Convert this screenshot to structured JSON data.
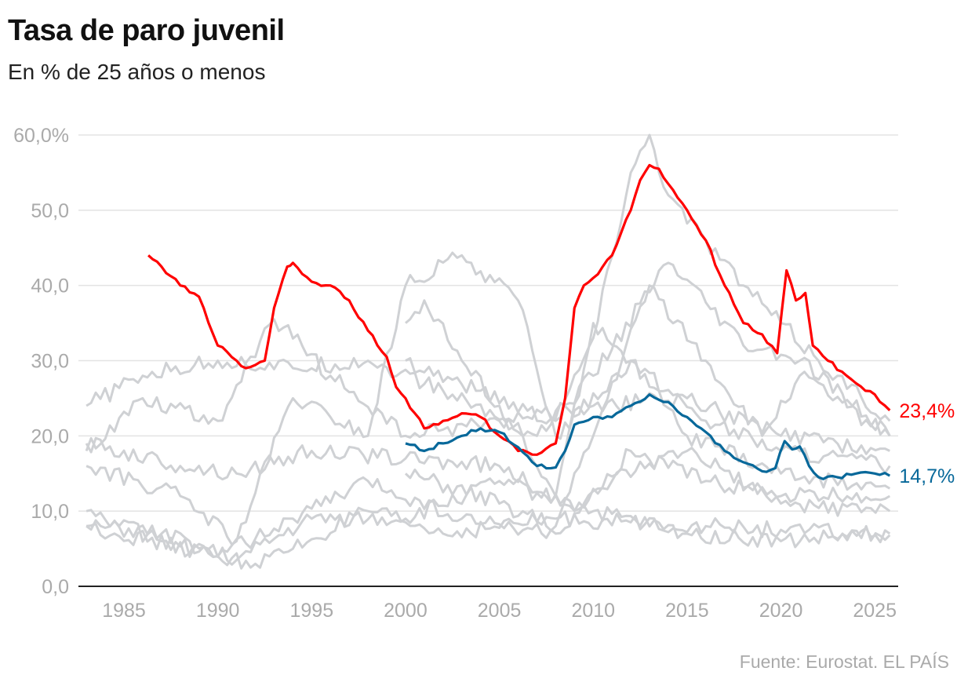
{
  "title": "Tasa de paro juvenil",
  "subtitle": "En % de 25 años o menos",
  "source": "Fuente: Eurostat. EL PAÍS",
  "chart_data": {
    "type": "line",
    "title": "Tasa de paro juvenil",
    "subtitle": "En % de 25 años o menos",
    "xlabel": "",
    "ylabel": "",
    "xlim": [
      1982.5,
      2026.5
    ],
    "ylim": [
      0,
      60
    ],
    "grid": true,
    "y_ticks": [
      0,
      10,
      20,
      30,
      40,
      50,
      60
    ],
    "y_tick_labels": [
      "0,0",
      "10,0",
      "20,0",
      "30,0",
      "40,0",
      "50,0",
      "60,0%"
    ],
    "x_ticks": [
      1985,
      1990,
      1995,
      2000,
      2005,
      2010,
      2015,
      2020,
      2025
    ],
    "x_tick_labels": [
      "1985",
      "1990",
      "1995",
      "2000",
      "2005",
      "2010",
      "2015",
      "2020",
      "2025"
    ],
    "colors": {
      "highlight_red": "#ff0000",
      "highlight_blue": "#07689a",
      "background_series": "#cfd1d4",
      "grid": "#e3e3e3",
      "axis": "#222222",
      "tick_text": "#aaaaaa"
    },
    "highlighted": [
      {
        "color": "#ff0000",
        "end_label": "23,4%",
        "x": [
          1986.3,
          1987,
          1988,
          1989,
          1990,
          1991,
          1991.5,
          1992.5,
          1993,
          1993.7,
          1994,
          1995,
          1996,
          1997,
          1998,
          1999,
          1999.5,
          2000,
          2000.5,
          2001,
          2002,
          2003,
          2004,
          2005,
          2006,
          2007,
          2008,
          2008.5,
          2009,
          2009.5,
          2010,
          2011,
          2012,
          2012.5,
          2013,
          2013.5,
          2014,
          2015,
          2016,
          2017,
          2018,
          2019,
          2019.8,
          2020.3,
          2020.8,
          2021.3,
          2021.7,
          2022.5,
          2023.5,
          2024,
          2025,
          2025.8
        ],
        "y": [
          44,
          42.5,
          40,
          38.5,
          32,
          30,
          29,
          30,
          37,
          42.5,
          43,
          40.5,
          40,
          38,
          34,
          30.5,
          26.5,
          25,
          23,
          21,
          22,
          23,
          22.5,
          20,
          18,
          17.5,
          19,
          25,
          37,
          40,
          41,
          44,
          50,
          54,
          56,
          55.5,
          53.5,
          50,
          46,
          40,
          35,
          33.5,
          31,
          42,
          38,
          39,
          32,
          30,
          28,
          27,
          25.5,
          23.4
        ]
      },
      {
        "color": "#07689a",
        "end_label": "14,7%",
        "x": [
          2000,
          2001,
          2002,
          2003,
          2004,
          2005,
          2006,
          2007,
          2008,
          2008.5,
          2009,
          2010,
          2011,
          2012,
          2013,
          2014,
          2015,
          2016,
          2017,
          2018,
          2019,
          2019.7,
          2020.2,
          2020.6,
          2021,
          2021.5,
          2022,
          2023,
          2024,
          2025,
          2025.8
        ],
        "y": [
          19,
          18,
          19,
          20,
          21,
          20.5,
          18.5,
          16,
          15.8,
          18,
          21.5,
          22.5,
          22.5,
          24,
          25.5,
          24.5,
          22.5,
          20.5,
          18,
          16.5,
          15.3,
          15.7,
          19.3,
          18.2,
          18.6,
          16,
          14.5,
          14.5,
          15,
          15,
          14.7
        ]
      }
    ],
    "background_series": [
      {
        "x": [
          2000,
          2004,
          2008,
          2010,
          2012,
          2013,
          2014,
          2016,
          2018,
          2020,
          2022,
          2025.8
        ],
        "y": [
          30,
          26,
          22,
          33,
          55,
          60,
          52,
          46,
          40,
          35,
          30,
          22
        ]
      },
      {
        "x": [
          1983,
          1986,
          1990,
          1994,
          1998,
          2002,
          2007,
          2010,
          2014,
          2018,
          2021,
          2025.8
        ],
        "y": [
          24,
          28,
          30,
          29,
          30,
          26,
          20,
          28,
          43,
          32,
          30,
          20
        ]
      },
      {
        "x": [
          1983,
          1986,
          1990,
          1993,
          1996,
          2000,
          2005,
          2010,
          2015,
          2020,
          2025.8
        ],
        "y": [
          18,
          25,
          22,
          35.5,
          28,
          20,
          22,
          24,
          25,
          20,
          18
        ]
      },
      {
        "x": [
          1983,
          1988,
          1991,
          1994,
          1998,
          2000,
          2003,
          2006,
          2008,
          2012,
          2016,
          2020,
          2025.8
        ],
        "y": [
          16,
          12,
          6,
          25,
          20,
          40,
          44,
          38,
          20,
          30,
          22,
          18,
          16
        ]
      },
      {
        "x": [
          1983,
          1987,
          1991,
          1995,
          2000,
          2005,
          2010,
          2015,
          2020,
          2025.8
        ],
        "y": [
          8,
          7,
          3.5,
          9,
          9,
          14,
          10,
          7,
          6,
          7
        ]
      },
      {
        "x": [
          1983,
          1990,
          1992,
          1994,
          1998,
          2002,
          2008,
          2012,
          2016,
          2020,
          2025.8
        ],
        "y": [
          8,
          4,
          3,
          5,
          10,
          7,
          9,
          8.5,
          8,
          7.5,
          6.8
        ]
      },
      {
        "x": [
          1983,
          1988,
          1991,
          1995,
          2000,
          2005,
          2009,
          2012,
          2016,
          2020,
          2025.8
        ],
        "y": [
          19,
          16,
          15,
          18,
          17,
          16,
          10,
          18,
          14,
          12,
          12
        ]
      },
      {
        "x": [
          2000,
          2001,
          2003,
          2005,
          2008,
          2010,
          2012,
          2015,
          2020,
          2025.8
        ],
        "y": [
          35,
          38,
          30,
          24,
          12,
          35,
          30,
          20,
          15,
          13
        ]
      },
      {
        "x": [
          2000,
          2005,
          2008,
          2010,
          2013,
          2016,
          2019,
          2021,
          2025.8
        ],
        "y": [
          15,
          11,
          8,
          20,
          40,
          30,
          20,
          28,
          20
        ]
      },
      {
        "x": [
          1983,
          1987,
          1990,
          1994,
          1998,
          2003,
          2008,
          2011,
          2015,
          2020,
          2025.8
        ],
        "y": [
          10,
          6,
          4,
          9,
          14,
          9,
          7,
          14,
          18,
          11,
          10
        ]
      }
    ]
  }
}
